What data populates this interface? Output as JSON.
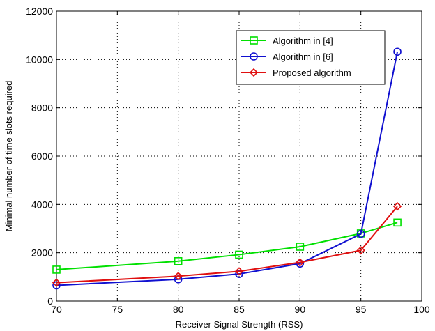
{
  "chart_data": {
    "type": "line",
    "title": "",
    "xlabel": "Receiver Signal Strength (RSS)",
    "ylabel": "Minimal number of time slots required",
    "xlim": [
      70,
      100
    ],
    "ylim": [
      0,
      12000
    ],
    "xticks": [
      70,
      75,
      80,
      85,
      90,
      95,
      100
    ],
    "yticks": [
      0,
      2000,
      4000,
      6000,
      8000,
      10000,
      12000
    ],
    "grid": true,
    "legend_position": "top-right",
    "series": [
      {
        "name": "Algorithm in [4]",
        "color": "#00e000",
        "marker": "square",
        "x": [
          70,
          80,
          85,
          90,
          95,
          98
        ],
        "y": [
          1300,
          1650,
          1920,
          2250,
          2800,
          3250
        ]
      },
      {
        "name": "Algorithm in [6]",
        "color": "#1010d0",
        "marker": "circle",
        "x": [
          70,
          80,
          85,
          90,
          95,
          98
        ],
        "y": [
          650,
          900,
          1120,
          1550,
          2780,
          10320
        ]
      },
      {
        "name": "Proposed algorithm",
        "color": "#e01010",
        "marker": "diamond",
        "x": [
          70,
          80,
          85,
          90,
          95,
          98
        ],
        "y": [
          760,
          1030,
          1230,
          1600,
          2100,
          3920
        ]
      }
    ]
  }
}
